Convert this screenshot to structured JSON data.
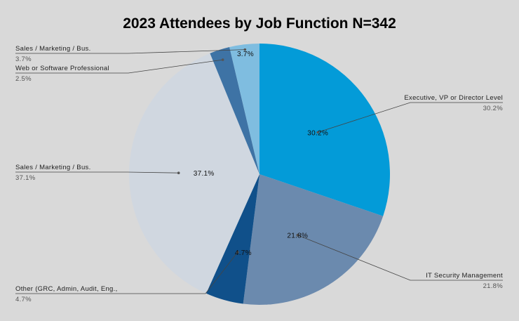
{
  "chart_data": {
    "type": "pie",
    "title": "2023 Attendees by Job Function N=342",
    "slices": [
      {
        "label": "Executive, VP or Director Level",
        "value": 30.2,
        "display": "30.2%",
        "color": "#039bd8"
      },
      {
        "label": "IT Security Management",
        "value": 21.8,
        "display": "21.8%",
        "color": "#6b8aae"
      },
      {
        "label": "Other (GRC, Admin, Audit, Eng.,",
        "value": 4.7,
        "display": "4.7%",
        "color": "#10508a"
      },
      {
        "label": "Sales / Marketing / Bus.",
        "value": 37.1,
        "display": "37.1%",
        "color": "#d0d7e0"
      },
      {
        "label": "Web or Software Professional",
        "value": 2.5,
        "display": "2.5%",
        "color": "#3e73a5"
      },
      {
        "label": "Sales / Marketing / Bus.",
        "value": 3.7,
        "display": "3.7%",
        "color": "#7fbde0"
      }
    ],
    "legend": "outside labels with leader lines"
  }
}
